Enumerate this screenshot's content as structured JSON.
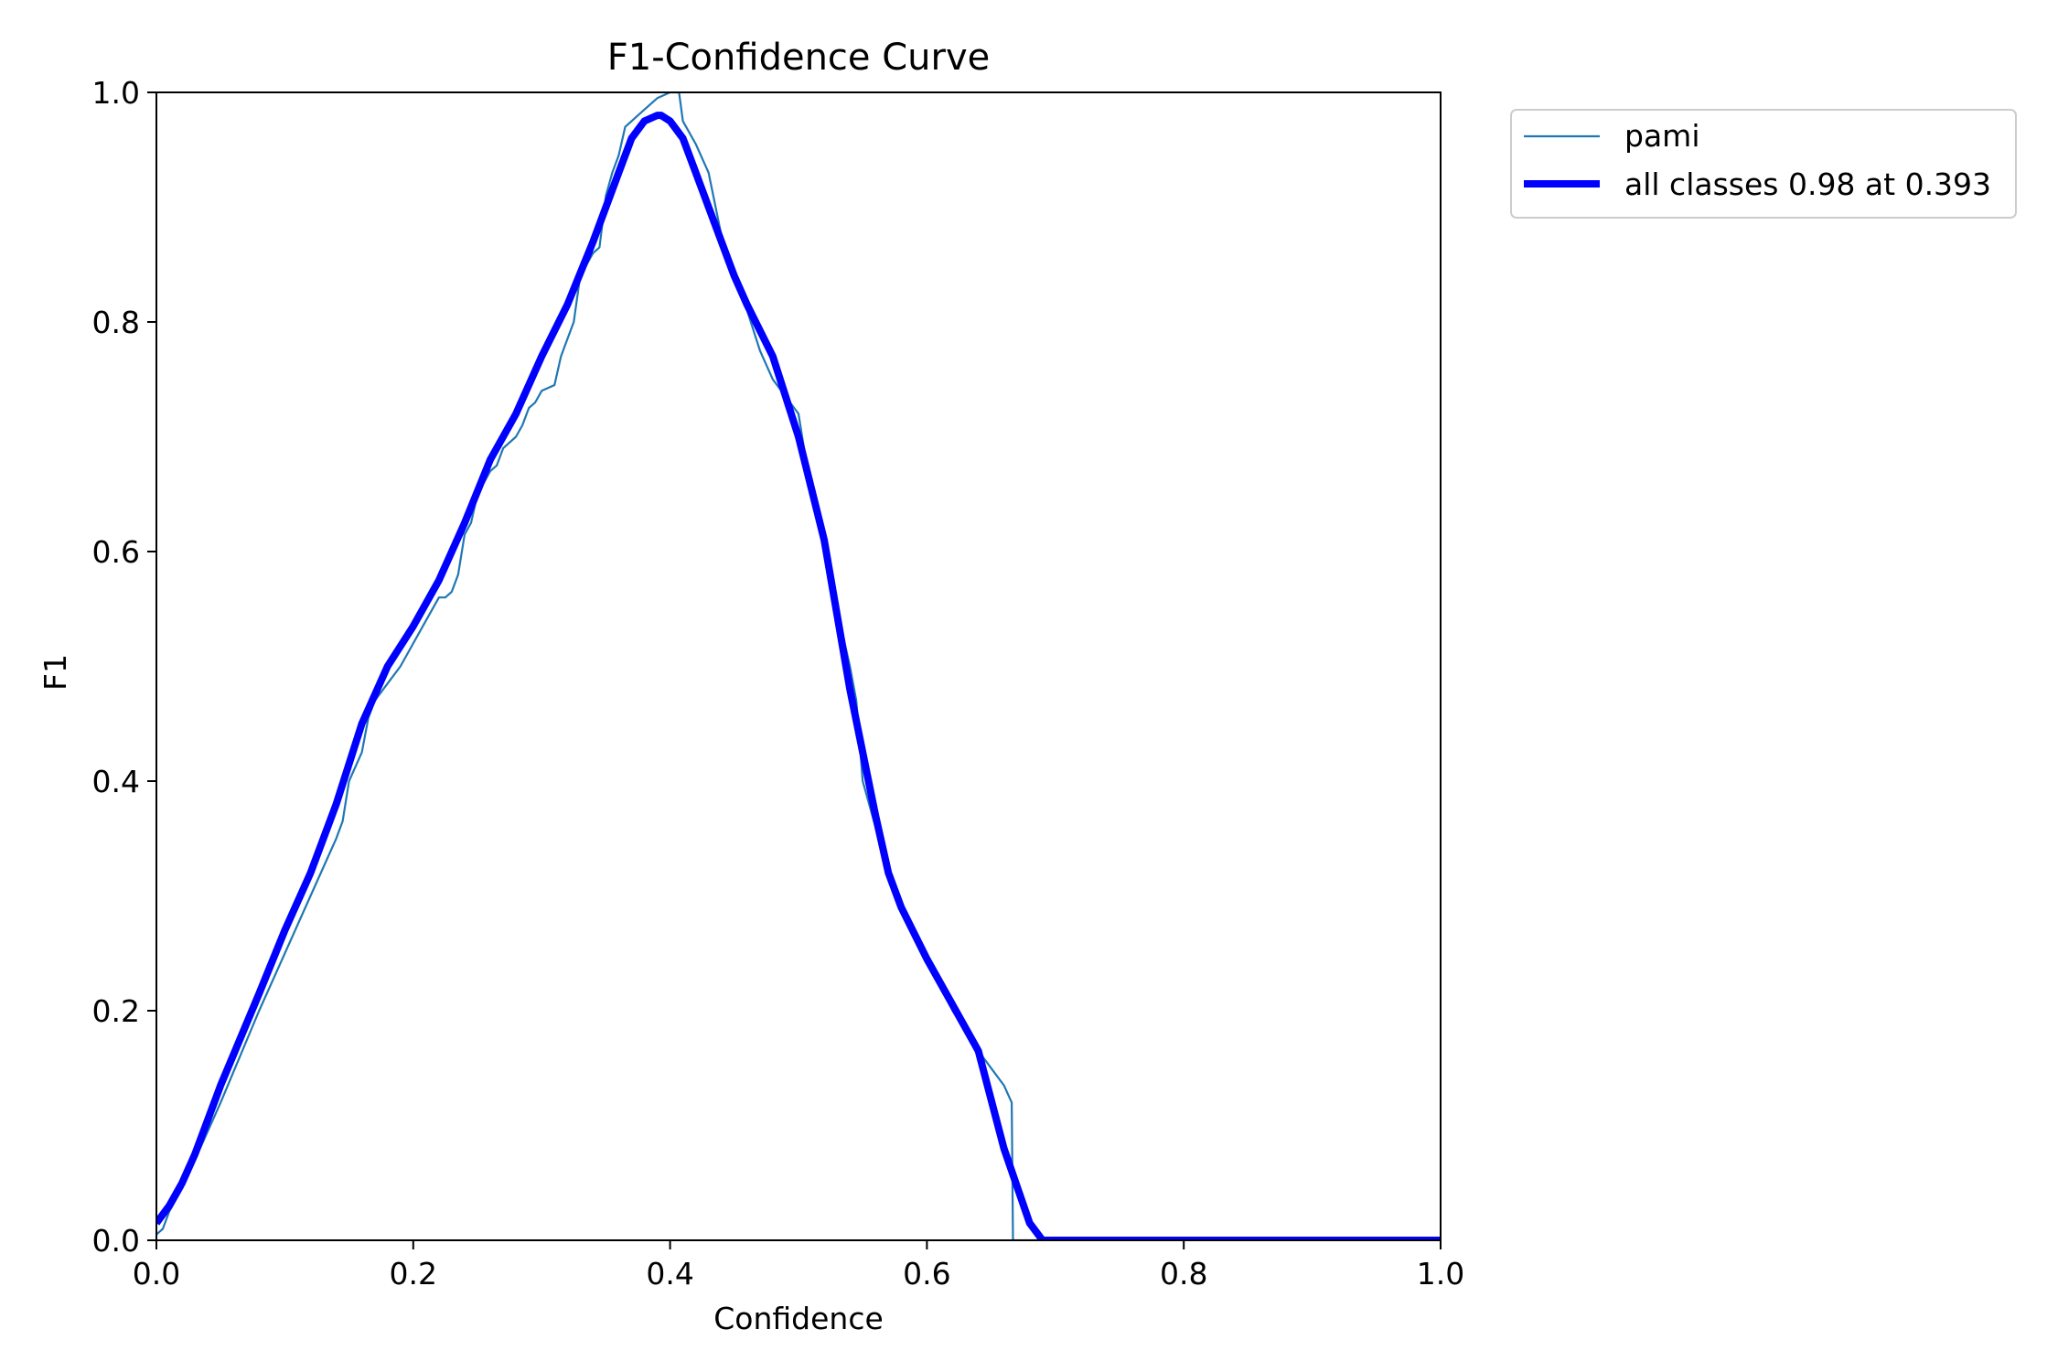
{
  "chart_data": {
    "type": "line",
    "title": "F1-Confidence Curve",
    "xlabel": "Confidence",
    "ylabel": "F1",
    "xlim": [
      0.0,
      1.0
    ],
    "ylim": [
      0.0,
      1.0
    ],
    "xticks": [
      0.0,
      0.2,
      0.4,
      0.6,
      0.8,
      1.0
    ],
    "yticks": [
      0.0,
      0.2,
      0.4,
      0.6,
      0.8,
      1.0
    ],
    "xtick_labels": [
      "0.0",
      "0.2",
      "0.4",
      "0.6",
      "0.8",
      "1.0"
    ],
    "ytick_labels": [
      "0.0",
      "0.2",
      "0.4",
      "0.6",
      "0.8",
      "1.0"
    ],
    "grid": false,
    "legend_position": "outside-top-right",
    "series": [
      {
        "name": "pami",
        "color": "#1f77b4",
        "x": [
          0.0,
          0.005,
          0.01,
          0.02,
          0.05,
          0.08,
          0.1,
          0.12,
          0.14,
          0.145,
          0.15,
          0.16,
          0.165,
          0.17,
          0.18,
          0.19,
          0.2,
          0.21,
          0.22,
          0.225,
          0.23,
          0.235,
          0.24,
          0.245,
          0.25,
          0.255,
          0.26,
          0.265,
          0.27,
          0.28,
          0.285,
          0.29,
          0.295,
          0.3,
          0.31,
          0.315,
          0.32,
          0.325,
          0.33,
          0.335,
          0.34,
          0.345,
          0.35,
          0.355,
          0.36,
          0.365,
          0.37,
          0.38,
          0.39,
          0.4,
          0.407,
          0.41,
          0.42,
          0.43,
          0.44,
          0.45,
          0.46,
          0.47,
          0.48,
          0.49,
          0.5,
          0.51,
          0.52,
          0.53,
          0.54,
          0.545,
          0.55,
          0.56,
          0.57,
          0.58,
          0.6,
          0.62,
          0.64,
          0.65,
          0.66,
          0.666,
          0.667,
          0.7,
          0.8,
          0.9,
          1.0
        ],
        "y": [
          0.005,
          0.01,
          0.025,
          0.045,
          0.12,
          0.2,
          0.25,
          0.3,
          0.35,
          0.365,
          0.4,
          0.425,
          0.455,
          0.47,
          0.485,
          0.5,
          0.52,
          0.54,
          0.56,
          0.56,
          0.565,
          0.58,
          0.615,
          0.625,
          0.65,
          0.66,
          0.67,
          0.675,
          0.69,
          0.7,
          0.71,
          0.725,
          0.73,
          0.74,
          0.745,
          0.77,
          0.785,
          0.8,
          0.84,
          0.85,
          0.86,
          0.865,
          0.91,
          0.93,
          0.945,
          0.97,
          0.975,
          0.985,
          0.995,
          1.0,
          1.0,
          0.975,
          0.955,
          0.93,
          0.875,
          0.845,
          0.81,
          0.775,
          0.75,
          0.735,
          0.72,
          0.65,
          0.6,
          0.55,
          0.5,
          0.47,
          0.4,
          0.36,
          0.315,
          0.29,
          0.245,
          0.2,
          0.165,
          0.15,
          0.135,
          0.12,
          0.0,
          0.0,
          0.0,
          0.0,
          0.0
        ]
      },
      {
        "name": "all classes 0.98 at 0.393",
        "color": "#0000ff",
        "x": [
          0.0,
          0.01,
          0.02,
          0.03,
          0.05,
          0.08,
          0.1,
          0.12,
          0.14,
          0.16,
          0.18,
          0.2,
          0.22,
          0.24,
          0.26,
          0.28,
          0.3,
          0.32,
          0.34,
          0.36,
          0.37,
          0.38,
          0.39,
          0.393,
          0.4,
          0.41,
          0.42,
          0.43,
          0.45,
          0.46,
          0.48,
          0.5,
          0.52,
          0.54,
          0.56,
          0.57,
          0.58,
          0.6,
          0.62,
          0.64,
          0.66,
          0.68,
          0.69,
          0.7,
          0.8,
          0.9,
          1.0
        ],
        "y": [
          0.015,
          0.03,
          0.05,
          0.075,
          0.135,
          0.215,
          0.27,
          0.32,
          0.38,
          0.45,
          0.5,
          0.535,
          0.575,
          0.625,
          0.68,
          0.72,
          0.77,
          0.815,
          0.87,
          0.93,
          0.96,
          0.975,
          0.98,
          0.98,
          0.975,
          0.96,
          0.93,
          0.9,
          0.84,
          0.815,
          0.77,
          0.7,
          0.61,
          0.48,
          0.37,
          0.32,
          0.29,
          0.245,
          0.205,
          0.165,
          0.08,
          0.015,
          0.0,
          0.0,
          0.0,
          0.0,
          0.0
        ]
      }
    ]
  }
}
